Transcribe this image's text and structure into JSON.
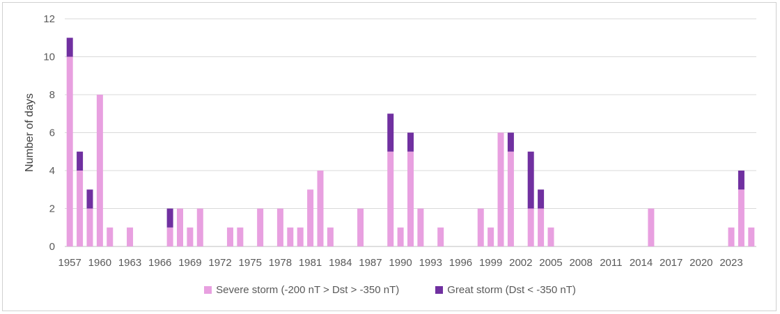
{
  "chart_data": {
    "type": "bar",
    "stacked": true,
    "title": "",
    "xlabel": "",
    "ylabel": "Number of days",
    "ylim": [
      0,
      12
    ],
    "yticks": [
      0,
      2,
      4,
      6,
      8,
      10,
      12
    ],
    "grid": true,
    "legend_position": "bottom",
    "x": [
      1957,
      1958,
      1959,
      1960,
      1961,
      1962,
      1963,
      1964,
      1965,
      1966,
      1967,
      1968,
      1969,
      1970,
      1971,
      1972,
      1973,
      1974,
      1975,
      1976,
      1977,
      1978,
      1979,
      1980,
      1981,
      1982,
      1983,
      1984,
      1985,
      1986,
      1987,
      1988,
      1989,
      1990,
      1991,
      1992,
      1993,
      1994,
      1995,
      1996,
      1997,
      1998,
      1999,
      2000,
      2001,
      2002,
      2003,
      2004,
      2005,
      2006,
      2007,
      2008,
      2009,
      2010,
      2011,
      2012,
      2013,
      2014,
      2015,
      2016,
      2017,
      2018,
      2019,
      2020,
      2021,
      2022,
      2023,
      2024,
      2025
    ],
    "xtick_labels": [
      "1957",
      "1960",
      "1963",
      "1966",
      "1969",
      "1972",
      "1975",
      "1978",
      "1981",
      "1984",
      "1987",
      "1990",
      "1993",
      "1996",
      "1999",
      "2002",
      "2005",
      "2008",
      "2011",
      "2014",
      "2017",
      "2020",
      "2023"
    ],
    "series": [
      {
        "name": "Severe storm (-200 nT > Dst > -350 nT)",
        "color": "#e8a0e0",
        "values": [
          10,
          4,
          2,
          8,
          1,
          0,
          1,
          0,
          0,
          0,
          1,
          2,
          1,
          2,
          0,
          0,
          1,
          1,
          0,
          2,
          0,
          2,
          1,
          1,
          3,
          4,
          1,
          0,
          0,
          2,
          0,
          0,
          5,
          1,
          5,
          2,
          0,
          1,
          0,
          0,
          0,
          2,
          1,
          6,
          5,
          0,
          2,
          2,
          1,
          0,
          0,
          0,
          0,
          0,
          0,
          0,
          0,
          0,
          2,
          0,
          0,
          0,
          0,
          0,
          0,
          0,
          1,
          3,
          1
        ]
      },
      {
        "name": "Great storm (Dst < -350 nT)",
        "color": "#7030a0",
        "values": [
          1,
          1,
          1,
          0,
          0,
          0,
          0,
          0,
          0,
          0,
          1,
          0,
          0,
          0,
          0,
          0,
          0,
          0,
          0,
          0,
          0,
          0,
          0,
          0,
          0,
          0,
          0,
          0,
          0,
          0,
          0,
          0,
          2,
          0,
          1,
          0,
          0,
          0,
          0,
          0,
          0,
          0,
          0,
          0,
          1,
          0,
          3,
          1,
          0,
          0,
          0,
          0,
          0,
          0,
          0,
          0,
          0,
          0,
          0,
          0,
          0,
          0,
          0,
          0,
          0,
          0,
          0,
          1,
          0
        ]
      }
    ]
  }
}
